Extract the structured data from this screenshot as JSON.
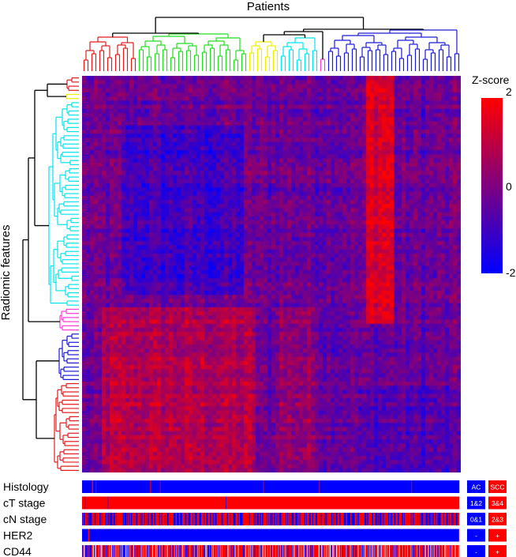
{
  "chart_data": {
    "type": "heatmap",
    "title": "Patients",
    "ylabel": "Radiomic features",
    "n_columns": 96,
    "n_rows": 96,
    "colorbar": {
      "label": "Z-score",
      "range": [
        -2,
        2
      ],
      "ticks": [
        "2",
        "0",
        "-2"
      ],
      "low_color": "#0000ff",
      "mid_color": "#7f007f",
      "high_color": "#ff0000"
    },
    "column_clusters": [
      {
        "color": "#e41a1c",
        "n": 14
      },
      {
        "color": "#22dd22",
        "n": 28
      },
      {
        "color": "#eeee00",
        "n": 8
      },
      {
        "color": "#00e5ee",
        "n": 10
      },
      {
        "color": "#ff3bd6",
        "n": 2
      },
      {
        "color": "#1a1adb",
        "n": 34
      }
    ],
    "row_clusters": [
      {
        "color": "#e41a1c",
        "n": 4
      },
      {
        "color": "#eeee00",
        "n": 2
      },
      {
        "color": "#00e5ee",
        "n": 50
      },
      {
        "color": "#ff3bd6",
        "n": 6
      },
      {
        "color": "#1a1adb",
        "n": 12
      },
      {
        "color": "#e41a1c",
        "n": 22
      }
    ],
    "annotation_tracks": [
      {
        "label": "Histology",
        "legend": [
          "AC",
          "SCC"
        ],
        "values": "000000000000000000110000010000000000000000000000000000000000000000000000000000000000000000000000000000000000000000000000000010000000000000000010000000000000000000000000000000000000000000000000000000000000000000000000000000000000000000000000000000000000000000000000000000000000000000000000000000000000000000000000000000000000000000100000000000000000000000000000000000000000000000000000000000000000000000000000000000000000000000000000100000000000000000000000000000000000000000000000000000000000000000000000000000000000000000000000000000000000000000000000000000000000000000000000000000000000000000000000100000000000000000000000000000000000000000000000000000000000000000000000000000000000000"
      },
      {
        "label": "cT stage",
        "legend": [
          "1&2",
          "3&4"
        ],
        "values": "111110111111111111111111111111111111111111111110111111111111111111111111111111111111111111111111111111111111111111111111111111111111111111111111111111111111111111111111111111111111111111111111111111111111111111111111111111111111111111111111111111111111111111111101111111111111111111111111111111111111111111111111111111111111111111111111111111111111111111111111111111111111111111111111111111111111111111111111111111111111111111111111111111111111111111111111111111111111111111111111111111111111111111111111111111111111111111111111111111111111111111111111111111111111111111111111111111111111111111111111111111111111111111111111111111111111111111111111111111111111111111111111111111111111111"
      },
      {
        "label": "cN stage",
        "legend": [
          "0&1",
          "2&3"
        ],
        "values": "011001110101000000111101001101110011011111100110001000010100011011111111111001000100101011001110111000111100100111001101010111000011000111111001110011110111000110111111000011000011000011111000111000011110111000011110000111110111000111100111001100101110111100011111110011110111100000111100110000011111111011010111111001010100010001100111111011011010010100011010110000111111110110111011000001110000110101111111001101111000111001111000111110100111101000111111110011001100011110011111100001100000011000000111101001111111111000100011111100011100001000100011010111011100110100111000111100111110001101111110111101101011111101110110000111010001000010110011010110000001111101111000110011100010110000111"
      },
      {
        "label": "HER2",
        "legend": [
          "-",
          "+"
        ],
        "values": "000000000001100000000000000000000000000000000000000000000000000000000000000000000000000000000000000000000000000000000000000000000000000000000000000000000000000000000000000000000000000000000000000000000000000000000000000000000000000000000000000000000000000000000000000000000000000000000000000000000000000000000000000000000000000000000000000000000000000000000000000000000000000000000000000000000000000000000000000000000000000000000000000000000000000000000000000000000000000000000000000000000000000000000000000000000000000000000000000000000000000000000000000000000000000000000000000000000000000000000000000000000000000000000000000000000000000000000000000000000000000000000000000000000000000001"
      },
      {
        "label": "CD44",
        "legend": [
          "-",
          "+"
        ],
        "values": "01122000101101000112210221101121022121011020011112112202101211211120201202001022020211211011220111101111020212111212101201110122111122121012011121001201212111110210111202111201101122121011001101211110112010112121111211101022120002001121211120112020121121111111012211210111002121112121111111001122111212120212101011111012120021212121112111121012111112110211121012011212011001111102121211101121211211122001122012101011021111111122101220111212121121221102212011221121202101101112021011212120011110012121111201021212110201212021212011112212002211211221121112210111102102011121211111201121112111112120110111121101211111101122101212021210212110121002111112011221211211201212111212111121"
      }
    ]
  }
}
